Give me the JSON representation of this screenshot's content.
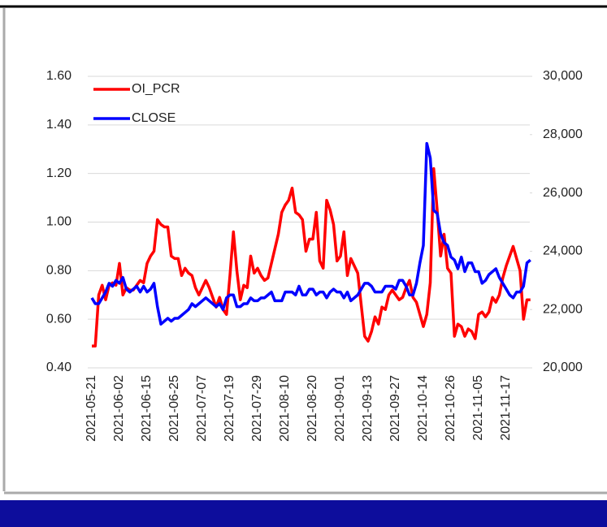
{
  "chart_data": {
    "type": "line",
    "categories": [
      "2021-05-21",
      null,
      null,
      null,
      null,
      null,
      null,
      null,
      "2021-06-02",
      null,
      null,
      null,
      null,
      null,
      null,
      null,
      "2021-06-15",
      null,
      null,
      null,
      null,
      null,
      null,
      null,
      "2021-06-25",
      null,
      null,
      null,
      null,
      null,
      null,
      null,
      "2021-07-07",
      null,
      null,
      null,
      null,
      null,
      null,
      null,
      "2021-07-19",
      null,
      null,
      null,
      null,
      null,
      null,
      null,
      "2021-07-29",
      null,
      null,
      null,
      null,
      null,
      null,
      null,
      "2021-08-10",
      null,
      null,
      null,
      null,
      null,
      null,
      null,
      "2021-08-20",
      null,
      null,
      null,
      null,
      null,
      null,
      null,
      "2021-09-01",
      null,
      null,
      null,
      null,
      null,
      null,
      null,
      "2021-09-13",
      null,
      null,
      null,
      null,
      null,
      null,
      null,
      "2021-09-27",
      null,
      null,
      null,
      null,
      null,
      null,
      null,
      "2021-10-14",
      null,
      null,
      null,
      null,
      null,
      null,
      null,
      "2021-10-26",
      null,
      null,
      null,
      null,
      null,
      null,
      null,
      "2021-11-05",
      null,
      null,
      null,
      null,
      null,
      null,
      null,
      "2021-11-17",
      null,
      null,
      null,
      null,
      null,
      null,
      null
    ],
    "series": [
      {
        "name": "OI_PCR",
        "color": "#ff0000",
        "values": [
          0.49,
          0.49,
          0.7,
          0.74,
          0.68,
          0.74,
          0.75,
          0.74,
          0.83,
          0.7,
          0.73,
          0.72,
          0.72,
          0.74,
          0.76,
          0.75,
          0.83,
          0.86,
          0.88,
          1.01,
          0.99,
          0.98,
          0.98,
          0.86,
          0.85,
          0.85,
          0.78,
          0.81,
          0.79,
          0.78,
          0.73,
          0.7,
          0.73,
          0.76,
          0.73,
          0.69,
          0.65,
          0.69,
          0.64,
          0.62,
          0.78,
          0.96,
          0.8,
          0.68,
          0.74,
          0.73,
          0.86,
          0.79,
          0.81,
          0.78,
          0.76,
          0.77,
          0.83,
          0.89,
          0.95,
          1.04,
          1.07,
          1.09,
          1.14,
          1.04,
          1.03,
          1.01,
          0.88,
          0.93,
          0.93,
          1.04,
          0.84,
          0.81,
          1.09,
          1.05,
          0.99,
          0.84,
          0.86,
          0.96,
          0.78,
          0.85,
          0.82,
          0.79,
          0.66,
          0.53,
          0.51,
          0.55,
          0.61,
          0.58,
          0.65,
          0.64,
          0.7,
          0.72,
          0.7,
          0.68,
          0.69,
          0.73,
          0.76,
          0.69,
          0.67,
          0.62,
          0.57,
          0.62,
          0.75,
          1.22,
          1.05,
          0.86,
          0.95,
          0.81,
          0.79,
          0.53,
          0.58,
          0.57,
          0.53,
          0.56,
          0.55,
          0.52,
          0.62,
          0.63,
          0.61,
          0.63,
          0.69,
          0.67,
          0.7,
          0.77,
          0.82,
          0.86,
          0.9,
          0.85,
          0.8,
          0.6,
          0.68,
          0.68
        ]
      },
      {
        "name": "CLOSE",
        "color": "#0000ff",
        "axis": "y2",
        "values": [
          22400,
          22200,
          22200,
          22400,
          22600,
          22900,
          22800,
          23000,
          22900,
          23100,
          22700,
          22600,
          22700,
          22800,
          22600,
          22800,
          22600,
          22700,
          22900,
          22100,
          21500,
          21600,
          21700,
          21600,
          21700,
          21700,
          21800,
          21900,
          22000,
          22200,
          22100,
          22200,
          22300,
          22400,
          22300,
          22200,
          22100,
          22200,
          22000,
          22400,
          22500,
          22500,
          22100,
          22100,
          22200,
          22200,
          22400,
          22300,
          22300,
          22400,
          22400,
          22500,
          22600,
          22300,
          22300,
          22300,
          22600,
          22600,
          22600,
          22500,
          22800,
          22500,
          22500,
          22700,
          22700,
          22500,
          22600,
          22600,
          22400,
          22600,
          22700,
          22600,
          22600,
          22400,
          22600,
          22300,
          22400,
          22500,
          22700,
          22900,
          22900,
          22800,
          22600,
          22600,
          22600,
          22800,
          22800,
          22800,
          22700,
          23000,
          23000,
          22800,
          22500,
          22500,
          22900,
          23600,
          24200,
          27700,
          27200,
          25400,
          25300,
          24600,
          24300,
          24200,
          23800,
          23700,
          23400,
          23800,
          23300,
          23600,
          23600,
          23300,
          23300,
          22900,
          23000,
          23200,
          23300,
          23400,
          23100,
          22900,
          22700,
          22500,
          22400,
          22600,
          22600,
          22800,
          23600,
          23700
        ]
      }
    ],
    "ylim": [
      0.4,
      1.6
    ],
    "yticks": [
      {
        "value": 0.4,
        "label": "0.40"
      },
      {
        "value": 0.6,
        "label": "0.60"
      },
      {
        "value": 0.8,
        "label": "0.80"
      },
      {
        "value": 1.0,
        "label": "1.00"
      },
      {
        "value": 1.2,
        "label": "1.20"
      },
      {
        "value": 1.4,
        "label": "1.40"
      },
      {
        "value": 1.6,
        "label": "1.60"
      }
    ],
    "y2lim": [
      20000,
      30000
    ],
    "y2ticks": [
      {
        "value": 20000,
        "label": "20,000"
      },
      {
        "value": 22000,
        "label": "22,000"
      },
      {
        "value": 24000,
        "label": "24,000"
      },
      {
        "value": 26000,
        "label": "26,000"
      },
      {
        "value": 28000,
        "label": "28,000"
      },
      {
        "value": 30000,
        "label": "30,000"
      }
    ],
    "grid": true,
    "legend": "top-left"
  }
}
